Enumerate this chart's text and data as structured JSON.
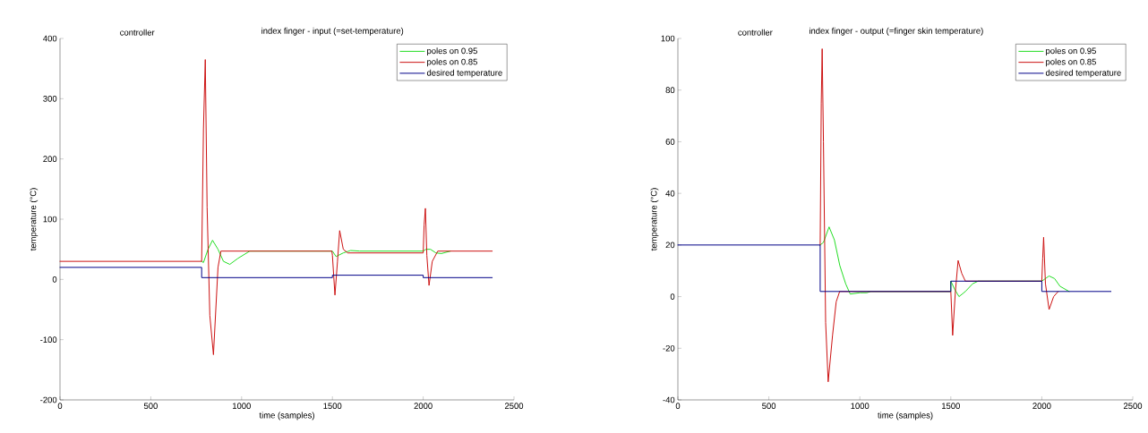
{
  "chart_data": [
    {
      "type": "line",
      "title": "controller",
      "subtitle": "index finger - input (=set-temperature)",
      "xlabel": "time (samples)",
      "ylabel": "temperature (°C)",
      "xlim": [
        0,
        2500
      ],
      "ylim": [
        -200,
        400
      ],
      "xticks": [
        0,
        500,
        1000,
        1500,
        2000,
        2500
      ],
      "yticks": [
        -200,
        -100,
        0,
        100,
        200,
        300,
        400
      ],
      "legend": "top right",
      "grid": false,
      "series": [
        {
          "name": "poles on 0.95",
          "color": "#22dd22",
          "x": [
            780,
            790,
            815,
            840,
            870,
            900,
            935,
            980,
            1045,
            1500,
            1520,
            1560,
            1600,
            1650,
            2000,
            2015,
            2040,
            2070,
            2100,
            2150
          ],
          "values": [
            30,
            28,
            50,
            65,
            50,
            30,
            25,
            35,
            47,
            47,
            38,
            44,
            48,
            47,
            47,
            50,
            50,
            44,
            43,
            47
          ]
        },
        {
          "name": "poles on 0.85",
          "color": "#cc1111",
          "x": [
            0,
            780,
            790,
            800,
            810,
            825,
            845,
            870,
            886,
            1497,
            1500,
            1514,
            1528,
            1540,
            1560,
            1585,
            2000,
            2005,
            2012,
            2020,
            2032,
            2050,
            2080,
            2380
          ],
          "values": [
            30,
            30,
            250,
            365,
            120,
            -60,
            -125,
            20,
            47,
            47,
            40,
            -26,
            30,
            81,
            50,
            44,
            44,
            90,
            118,
            40,
            -10,
            30,
            47,
            47
          ]
        },
        {
          "name": "desired temperature",
          "color": "#000088",
          "x": [
            0,
            780,
            780,
            1500,
            1500,
            2000,
            2000,
            2380
          ],
          "values": [
            20,
            20,
            3,
            3,
            7,
            7,
            3,
            3
          ]
        }
      ]
    },
    {
      "type": "line",
      "title": "controller",
      "subtitle": "index finger - output (=finger skin temperature)",
      "xlabel": "time (samples)",
      "ylabel": "temperature (°C)",
      "xlim": [
        0,
        2500
      ],
      "ylim": [
        -40,
        100
      ],
      "xticks": [
        0,
        500,
        1000,
        1500,
        2000,
        2500
      ],
      "yticks": [
        -40,
        -20,
        0,
        20,
        40,
        60,
        80,
        100
      ],
      "legend": "top right",
      "grid": false,
      "series": [
        {
          "name": "poles on 0.95",
          "color": "#22dd22",
          "x": [
            782,
            800,
            831,
            860,
            890,
            922,
            947,
            1000,
            1038,
            1060,
            1500,
            1500,
            1520,
            1545,
            1580,
            1620,
            1650,
            2000,
            2020,
            2040,
            2070,
            2100,
            2150
          ],
          "values": [
            20,
            21,
            27,
            22,
            12,
            5,
            1,
            1.5,
            1.5,
            2,
            2,
            6,
            3,
            0,
            2,
            5,
            6,
            6,
            7,
            8,
            7,
            4,
            2
          ]
        },
        {
          "name": "poles on 0.85",
          "color": "#cc1111",
          "x": [
            782,
            788,
            793,
            800,
            812,
            826,
            850,
            870,
            889,
            1500,
            1510,
            1525,
            1540,
            1560,
            1580,
            2000,
            2005,
            2010,
            2020,
            2040,
            2065,
            2090
          ],
          "values": [
            20,
            75,
            96,
            60,
            -10,
            -33,
            -15,
            -2,
            2,
            2,
            -15,
            2,
            14,
            9,
            6,
            6,
            15,
            23,
            5,
            -5,
            0,
            2
          ]
        },
        {
          "name": "desired temperature",
          "color": "#000088",
          "x": [
            0,
            782,
            782,
            1500,
            1500,
            2000,
            2000,
            2380
          ],
          "values": [
            20,
            20,
            2,
            2,
            6,
            6,
            2,
            2
          ]
        }
      ]
    }
  ]
}
